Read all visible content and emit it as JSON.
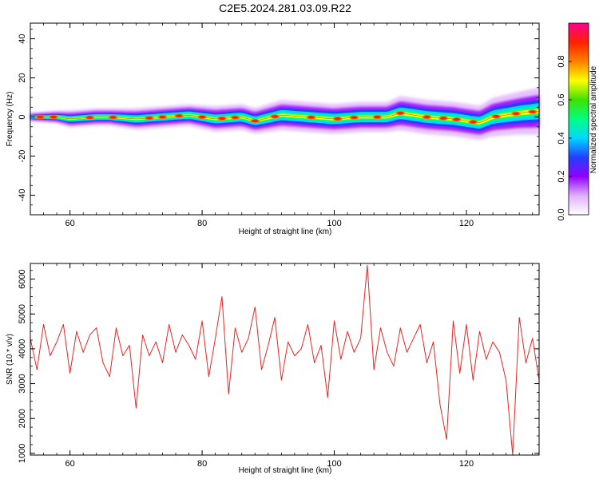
{
  "figure": {
    "title": "C2E5.2024.281.03.09.R22"
  },
  "chart_data": [
    {
      "type": "heatmap",
      "title": "C2E5.2024.281.03.09.R22",
      "xlabel": "Height of straight line (km)",
      "ylabel": "Frequency (Hz)",
      "xlim": [
        54,
        131
      ],
      "ylim": [
        -50,
        48
      ],
      "xticks": [
        60,
        80,
        100,
        120
      ],
      "yticks": [
        -40,
        -20,
        0,
        20,
        40
      ],
      "colorbar": {
        "label": "Normalized spectral amplitude",
        "range": [
          0.0,
          1.0
        ],
        "ticks": [
          0.0,
          0.2,
          0.4,
          0.6,
          0.8
        ],
        "colors": [
          "#ffffff",
          "#e0b0ff",
          "#9000ff",
          "#2040ff",
          "#00d8ff",
          "#00ff80",
          "#40e000",
          "#ffff00",
          "#ff8000",
          "#ff2000",
          "#ff0090"
        ]
      },
      "ridge": {
        "x": [
          54,
          58,
          60,
          64,
          66,
          70,
          74,
          78,
          82,
          86,
          88,
          92,
          96,
          100,
          104,
          108,
          110,
          114,
          118,
          122,
          124,
          128,
          131
        ],
        "frequency": [
          0,
          0,
          -1,
          0,
          0,
          -1,
          0,
          1,
          -1,
          0,
          -2,
          1,
          0,
          -1,
          0,
          0,
          2,
          0,
          -1,
          -3,
          0,
          2,
          3
        ],
        "halfwidth": [
          1,
          1.5,
          2,
          2,
          2,
          2.5,
          2.5,
          2.5,
          3,
          3,
          3,
          3.5,
          3.5,
          3.5,
          3.5,
          3.5,
          4,
          4,
          4,
          4,
          4.5,
          5,
          5.5
        ],
        "hotspots": [
          55.5,
          57.5,
          63,
          66.5,
          72,
          74,
          76.5,
          80,
          83,
          85,
          88,
          91,
          96.5,
          100.5,
          103,
          106.5,
          110,
          114,
          116.5,
          118.5,
          121,
          124.5,
          127.5,
          130
        ]
      }
    },
    {
      "type": "line",
      "xlabel": "Height of straight line (km)",
      "ylabel": "SNR (10 * v/v)",
      "xlim": [
        54,
        131
      ],
      "ylim": [
        950,
        6450
      ],
      "xticks": [
        60,
        80,
        100,
        120
      ],
      "yticks": [
        1000,
        2000,
        3000,
        4000,
        5000,
        6000
      ],
      "color": "#ee2222",
      "series": [
        {
          "x": [
            54,
            55,
            56,
            57,
            58,
            59,
            60,
            61,
            62,
            63,
            64,
            65,
            66,
            67,
            68,
            69,
            70,
            71,
            72,
            73,
            74,
            75,
            76,
            77,
            78,
            79,
            80,
            81,
            82,
            83,
            84,
            85,
            86,
            87,
            88,
            89,
            90,
            91,
            92,
            93,
            94,
            95,
            96,
            97,
            98,
            99,
            100,
            101,
            102,
            103,
            104,
            105,
            106,
            107,
            108,
            109,
            110,
            111,
            112,
            113,
            114,
            115,
            116,
            117,
            118,
            119,
            120,
            121,
            122,
            123,
            124,
            125,
            126,
            127,
            128,
            129,
            130,
            131
          ],
          "y": [
            4300,
            3400,
            4700,
            3800,
            4200,
            4700,
            3300,
            4500,
            3900,
            4400,
            4600,
            3600,
            3200,
            4600,
            3800,
            4100,
            2300,
            4400,
            3800,
            4200,
            3600,
            4700,
            3900,
            4400,
            4100,
            3700,
            4800,
            3200,
            4300,
            5500,
            2700,
            4600,
            3900,
            4300,
            5200,
            3400,
            4100,
            4900,
            3100,
            4200,
            3800,
            4000,
            4700,
            3600,
            4100,
            2600,
            4800,
            3700,
            4500,
            3900,
            4300,
            6400,
            3400,
            4600,
            3900,
            3500,
            4600,
            3900,
            4300,
            4700,
            3600,
            4200,
            2400,
            1400,
            4800,
            3300,
            4700,
            3100,
            4500,
            3700,
            4200,
            3900,
            3100,
            950,
            4900,
            3600,
            4300,
            3100
          ]
        }
      ]
    }
  ]
}
